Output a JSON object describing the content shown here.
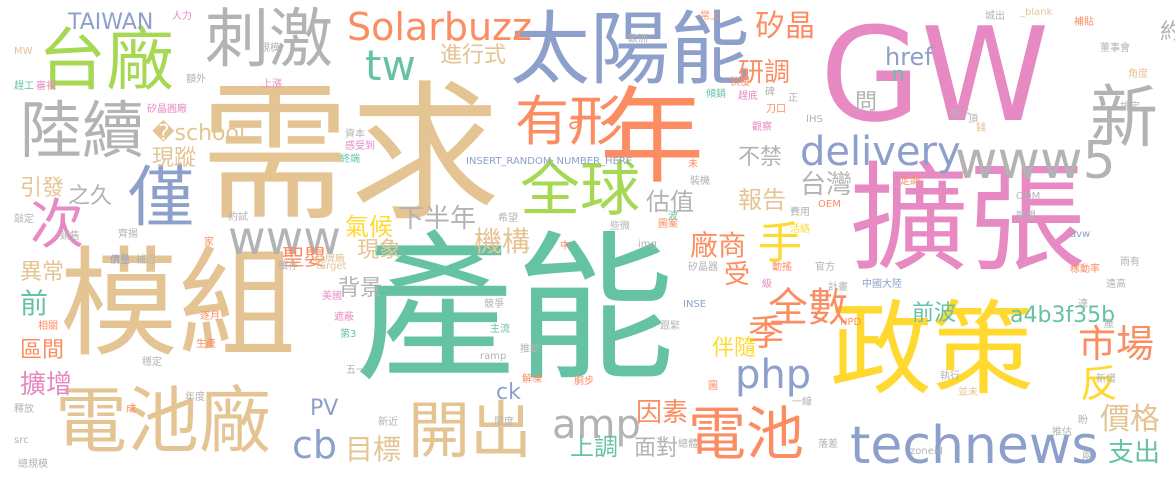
{
  "palette": {
    "green": "#66c2a5",
    "orange": "#fc8d62",
    "blue": "#8da0cb",
    "pink": "#e78ac3",
    "lime": "#a6d854",
    "yellow": "#ffd92f",
    "tan": "#e5c494",
    "gray": "#b3b3b3"
  },
  "words": [
    {
      "text": "需求",
      "color": "tan"
    },
    {
      "text": "產能",
      "color": "green"
    },
    {
      "text": "GW",
      "color": "pink"
    },
    {
      "text": "模組",
      "color": "tan"
    },
    {
      "text": "擴張",
      "color": "pink"
    },
    {
      "text": "政策",
      "color": "yellow"
    },
    {
      "text": "年",
      "color": "orange"
    },
    {
      "text": "太陽能",
      "color": "blue"
    },
    {
      "text": "電池廠",
      "color": "tan"
    },
    {
      "text": "台廠",
      "color": "lime"
    },
    {
      "text": "刺激",
      "color": "gray"
    },
    {
      "text": "陸續",
      "color": "gray"
    },
    {
      "text": "全球",
      "color": "lime"
    },
    {
      "text": "僅",
      "color": "blue"
    },
    {
      "text": "technews",
      "color": "blue"
    },
    {
      "text": "www5",
      "color": "gray"
    },
    {
      "text": "新",
      "color": "gray"
    },
    {
      "text": "開出",
      "color": "tan"
    },
    {
      "text": "電池",
      "color": "orange"
    },
    {
      "text": "有形",
      "color": "orange"
    },
    {
      "text": "Solarbuzz",
      "color": "orange"
    },
    {
      "text": "delivery",
      "color": "blue"
    },
    {
      "text": "www",
      "color": "gray"
    },
    {
      "text": "tw",
      "color": "green"
    },
    {
      "text": "次",
      "color": "pink"
    },
    {
      "text": "amp",
      "color": "gray"
    },
    {
      "text": "cb",
      "color": "blue"
    },
    {
      "text": "php",
      "color": "blue"
    },
    {
      "text": "手",
      "color": "yellow"
    },
    {
      "text": "全數",
      "color": "orange"
    },
    {
      "text": "市場",
      "color": "orange"
    },
    {
      "text": "反",
      "color": "yellow"
    },
    {
      "text": "a4b3f35b",
      "color": "green"
    },
    {
      "text": "價格",
      "color": "tan"
    },
    {
      "text": "支出",
      "color": "green"
    },
    {
      "text": "目標",
      "color": "tan"
    },
    {
      "text": "矽晶",
      "color": "orange"
    },
    {
      "text": "研調",
      "color": "orange"
    },
    {
      "text": "約",
      "color": "gray"
    },
    {
      "text": "href",
      "color": "blue"
    },
    {
      "text": "台灣",
      "color": "gray"
    },
    {
      "text": "廠商",
      "color": "orange"
    },
    {
      "text": "季",
      "color": "orange"
    },
    {
      "text": "因素",
      "color": "orange"
    },
    {
      "text": "上調",
      "color": "green"
    },
    {
      "text": "面對",
      "color": "gray"
    },
    {
      "text": "PV",
      "color": "blue"
    },
    {
      "text": "伴隨",
      "color": "yellow"
    },
    {
      "text": "機構",
      "color": "tan"
    },
    {
      "text": "估值",
      "color": "gray"
    },
    {
      "text": "報告",
      "color": "tan"
    },
    {
      "text": "不禁",
      "color": "gray"
    },
    {
      "text": "前波",
      "color": "green"
    },
    {
      "text": "擴增",
      "color": "pink"
    },
    {
      "text": "區間",
      "color": "orange"
    },
    {
      "text": "異常",
      "color": "tan"
    },
    {
      "text": "前",
      "color": "green"
    },
    {
      "text": "引發",
      "color": "tan"
    },
    {
      "text": "�school",
      "color": "tan"
    },
    {
      "text": "現蹤",
      "color": "tan"
    },
    {
      "text": "進行式",
      "color": "tan"
    },
    {
      "text": "TAIWAN",
      "color": "blue"
    },
    {
      "text": "氣候",
      "color": "yellow"
    },
    {
      "text": "現象",
      "color": "tan"
    },
    {
      "text": "下半年",
      "color": "gray"
    },
    {
      "text": "聖嬰",
      "color": "orange"
    },
    {
      "text": "背景",
      "color": "gray"
    },
    {
      "text": "受",
      "color": "orange"
    },
    {
      "text": "ck",
      "color": "blue"
    },
    {
      "text": "a",
      "color": "orange"
    },
    {
      "text": "n",
      "color": "green"
    },
    {
      "text": "問",
      "color": "gray"
    },
    {
      "text": "之久",
      "color": "gray"
    }
  ],
  "small_words": [
    "人力",
    "常上",
    "城出",
    "_blank",
    "補貼",
    "董事會",
    "角度",
    "MW",
    "規模",
    "歐洲",
    "正",
    "排定",
    "趕工",
    "審視",
    "上漲",
    "額外",
    "快慢",
    "碑",
    "IHS",
    "帽子",
    "錢",
    "矽晶圓廠",
    "傾銷",
    "趕底",
    "刀口",
    "觀察",
    "頂",
    "資本",
    "感受到",
    "終端",
    "INSERT_RANDOM_NUMBER_HERE",
    "未",
    "裝機",
    "定調",
    "費用",
    "波",
    "希望",
    "OEM",
    "品牌廠",
    "敲定",
    "約試",
    "齊揚",
    "歐盟",
    "avw",
    "ODM",
    "雨有",
    "家",
    "中",
    "些微",
    "img",
    "圖案",
    "活絡",
    "動搖",
    "官方",
    "稼動率",
    "銷售",
    "補近",
    "價量",
    "續存",
    "target",
    "矽晶器",
    "級",
    "計畫",
    "中國大陸",
    "產",
    "遠高",
    "美國",
    "競爭",
    "INSE",
    "NPD",
    "相關",
    "逐月",
    "遮蔽",
    "第3",
    "跟緊",
    "達",
    "生產",
    "主流",
    "推動",
    "穩定",
    "五一",
    "ramp",
    "解凍",
    "胴步",
    "圖",
    "執行",
    "新增",
    "並未",
    "一線",
    "年度",
    "釋放",
    "成",
    "src",
    "新近",
    "限度",
    "推估",
    "盼",
    "總規模",
    "zoneid",
    "總體",
    "落差",
    "兩"
  ]
}
